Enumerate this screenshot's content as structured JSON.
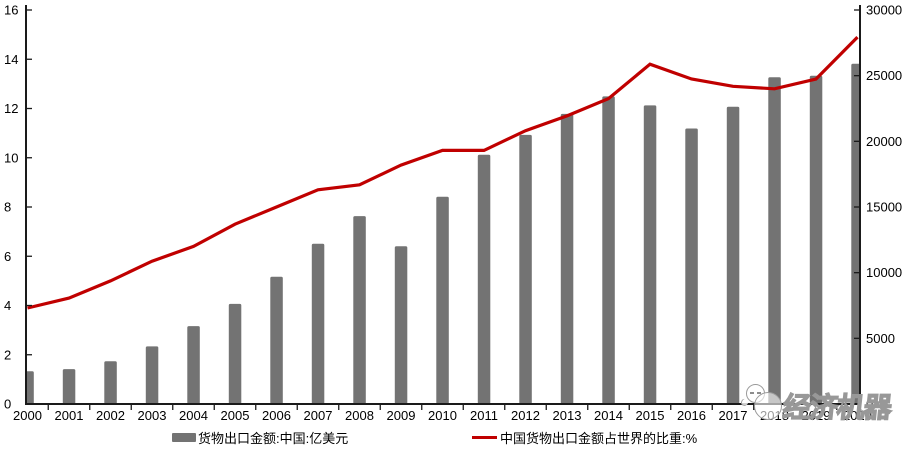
{
  "chart_data": {
    "type": "bar",
    "title": "",
    "x": [
      "2000",
      "2001",
      "2002",
      "2003",
      "2004",
      "2005",
      "2006",
      "2007",
      "2008",
      "2009",
      "2010",
      "2011",
      "2012",
      "2013",
      "2014",
      "2015",
      "2016",
      "2017",
      "2018",
      "2019",
      "2020"
    ],
    "series": [
      {
        "name": "货物出口金额:中国:亿美元",
        "type": "bar",
        "axis": "right",
        "color": "#737373",
        "values": [
          2492,
          2661,
          3256,
          4382,
          5933,
          7620,
          9690,
          12205,
          14307,
          12016,
          15778,
          18984,
          20487,
          22090,
          23423,
          22735,
          20976,
          22633,
          24874,
          24995,
          25906
        ]
      },
      {
        "name": "中国货物出口金额占世界的比重:%",
        "type": "line",
        "axis": "left",
        "color": "#C00000",
        "values": [
          3.9,
          4.3,
          5.0,
          5.8,
          6.4,
          7.3,
          8.0,
          8.7,
          8.9,
          9.7,
          10.3,
          10.3,
          11.1,
          11.7,
          12.4,
          13.8,
          13.2,
          12.9,
          12.8,
          13.2,
          14.9
        ]
      }
    ],
    "left_axis": {
      "min": 0,
      "max": 16,
      "ticks": [
        0,
        2,
        4,
        6,
        8,
        10,
        12,
        14,
        16
      ]
    },
    "right_axis": {
      "min": 0,
      "max": 30000,
      "ticks": [
        0,
        5000,
        10000,
        15000,
        20000,
        25000,
        30000
      ]
    },
    "grid": false,
    "legend_position": "bottom"
  },
  "legend": {
    "bar_label": "货物出口金额:中国:亿美元",
    "line_label": "中国货物出口金额占世界的比重:%"
  },
  "watermark": {
    "text": "经济机器"
  },
  "colors": {
    "bar": "#737373",
    "line": "#C00000",
    "axis": "#1a1a1a",
    "watermark_outline": "#989898",
    "background": "#ffffff"
  }
}
